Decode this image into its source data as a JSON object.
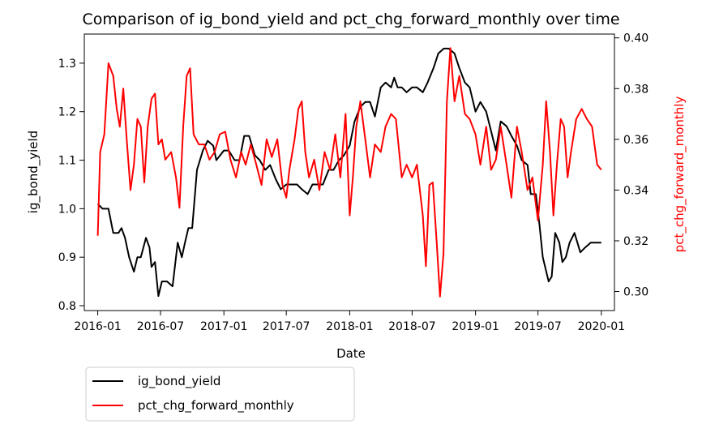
{
  "chart_data": {
    "type": "line",
    "title": "Comparison of ig_bond_yield and pct_chg_forward_monthly over time",
    "xlabel": "Date",
    "ylabel_left": "ig_bond_yield",
    "ylabel_right": "pct_chg_forward_monthly",
    "x_range": [
      "2015-11-23",
      "2020-02-08"
    ],
    "x_ticks": [
      "2016-01",
      "2016-07",
      "2017-01",
      "2017-07",
      "2018-01",
      "2018-07",
      "2019-01",
      "2019-07",
      "2020-01"
    ],
    "ylim_left": [
      0.79,
      1.36
    ],
    "yticks_left": [
      "0.8",
      "0.9",
      "1.0",
      "1.1",
      "1.2",
      "1.3"
    ],
    "ylim_right": [
      0.2925,
      0.4015
    ],
    "yticks_right": [
      "0.30",
      "0.32",
      "0.34",
      "0.36",
      "0.38",
      "0.40"
    ],
    "grid": false,
    "legend_position": "below-left",
    "series": [
      {
        "name": "ig_bond_yield",
        "color": "#000000",
        "axis": "left",
        "points": [
          [
            "2016-01-01",
            1.01
          ],
          [
            "2016-01-15",
            1.0
          ],
          [
            "2016-02-01",
            1.0
          ],
          [
            "2016-02-15",
            0.95
          ],
          [
            "2016-03-01",
            0.95
          ],
          [
            "2016-03-10",
            0.96
          ],
          [
            "2016-03-20",
            0.94
          ],
          [
            "2016-04-01",
            0.9
          ],
          [
            "2016-04-15",
            0.87
          ],
          [
            "2016-04-25",
            0.9
          ],
          [
            "2016-05-05",
            0.9
          ],
          [
            "2016-05-20",
            0.94
          ],
          [
            "2016-05-30",
            0.92
          ],
          [
            "2016-06-05",
            0.88
          ],
          [
            "2016-06-15",
            0.89
          ],
          [
            "2016-06-25",
            0.82
          ],
          [
            "2016-07-05",
            0.85
          ],
          [
            "2016-07-20",
            0.85
          ],
          [
            "2016-08-05",
            0.84
          ],
          [
            "2016-08-20",
            0.93
          ],
          [
            "2016-09-01",
            0.9
          ],
          [
            "2016-09-10",
            0.93
          ],
          [
            "2016-09-20",
            0.96
          ],
          [
            "2016-10-01",
            0.96
          ],
          [
            "2016-10-15",
            1.08
          ],
          [
            "2016-11-01",
            1.12
          ],
          [
            "2016-11-15",
            1.14
          ],
          [
            "2016-12-01",
            1.13
          ],
          [
            "2016-12-10",
            1.1
          ],
          [
            "2017-01-01",
            1.12
          ],
          [
            "2017-01-15",
            1.12
          ],
          [
            "2017-02-01",
            1.1
          ],
          [
            "2017-02-15",
            1.1
          ],
          [
            "2017-03-01",
            1.15
          ],
          [
            "2017-03-15",
            1.15
          ],
          [
            "2017-04-01",
            1.11
          ],
          [
            "2017-04-15",
            1.1
          ],
          [
            "2017-05-01",
            1.08
          ],
          [
            "2017-05-15",
            1.09
          ],
          [
            "2017-06-01",
            1.06
          ],
          [
            "2017-06-15",
            1.04
          ],
          [
            "2017-07-01",
            1.05
          ],
          [
            "2017-07-15",
            1.05
          ],
          [
            "2017-08-01",
            1.05
          ],
          [
            "2017-08-15",
            1.04
          ],
          [
            "2017-09-01",
            1.03
          ],
          [
            "2017-09-15",
            1.05
          ],
          [
            "2017-10-01",
            1.05
          ],
          [
            "2017-10-15",
            1.05
          ],
          [
            "2017-11-01",
            1.08
          ],
          [
            "2017-11-15",
            1.08
          ],
          [
            "2017-12-01",
            1.1
          ],
          [
            "2017-12-15",
            1.11
          ],
          [
            "2018-01-01",
            1.13
          ],
          [
            "2018-01-15",
            1.18
          ],
          [
            "2018-02-01",
            1.21
          ],
          [
            "2018-02-15",
            1.22
          ],
          [
            "2018-03-01",
            1.22
          ],
          [
            "2018-03-15",
            1.19
          ],
          [
            "2018-04-01",
            1.25
          ],
          [
            "2018-04-15",
            1.26
          ],
          [
            "2018-05-01",
            1.25
          ],
          [
            "2018-05-10",
            1.27
          ],
          [
            "2018-05-20",
            1.25
          ],
          [
            "2018-06-01",
            1.25
          ],
          [
            "2018-06-15",
            1.24
          ],
          [
            "2018-07-01",
            1.25
          ],
          [
            "2018-07-15",
            1.25
          ],
          [
            "2018-08-01",
            1.24
          ],
          [
            "2018-08-15",
            1.26
          ],
          [
            "2018-09-01",
            1.29
          ],
          [
            "2018-09-15",
            1.32
          ],
          [
            "2018-10-01",
            1.33
          ],
          [
            "2018-10-15",
            1.33
          ],
          [
            "2018-11-01",
            1.32
          ],
          [
            "2018-11-15",
            1.29
          ],
          [
            "2018-12-01",
            1.26
          ],
          [
            "2018-12-15",
            1.25
          ],
          [
            "2019-01-01",
            1.2
          ],
          [
            "2019-01-15",
            1.22
          ],
          [
            "2019-02-01",
            1.2
          ],
          [
            "2019-02-15",
            1.16
          ],
          [
            "2019-03-01",
            1.12
          ],
          [
            "2019-03-15",
            1.18
          ],
          [
            "2019-04-01",
            1.17
          ],
          [
            "2019-04-15",
            1.15
          ],
          [
            "2019-05-01",
            1.13
          ],
          [
            "2019-05-15",
            1.1
          ],
          [
            "2019-06-01",
            1.09
          ],
          [
            "2019-06-10",
            1.03
          ],
          [
            "2019-06-25",
            1.03
          ],
          [
            "2019-07-05",
            0.97
          ],
          [
            "2019-07-15",
            0.9
          ],
          [
            "2019-08-01",
            0.85
          ],
          [
            "2019-08-10",
            0.86
          ],
          [
            "2019-08-20",
            0.95
          ],
          [
            "2019-09-01",
            0.93
          ],
          [
            "2019-09-10",
            0.89
          ],
          [
            "2019-09-20",
            0.9
          ],
          [
            "2019-10-01",
            0.93
          ],
          [
            "2019-10-15",
            0.95
          ],
          [
            "2019-11-01",
            0.91
          ],
          [
            "2019-11-15",
            0.92
          ],
          [
            "2019-12-01",
            0.93
          ],
          [
            "2019-12-15",
            0.93
          ],
          [
            "2020-01-01",
            0.93
          ]
        ]
      },
      {
        "name": "pct_chg_forward_monthly",
        "color": "#ff0000",
        "axis": "right",
        "points": [
          [
            "2016-01-01",
            0.322
          ],
          [
            "2016-01-08",
            0.355
          ],
          [
            "2016-01-20",
            0.362
          ],
          [
            "2016-02-01",
            0.39
          ],
          [
            "2016-02-15",
            0.385
          ],
          [
            "2016-02-25",
            0.372
          ],
          [
            "2016-03-05",
            0.365
          ],
          [
            "2016-03-15",
            0.38
          ],
          [
            "2016-03-25",
            0.36
          ],
          [
            "2016-04-05",
            0.34
          ],
          [
            "2016-04-15",
            0.35
          ],
          [
            "2016-04-25",
            0.368
          ],
          [
            "2016-05-05",
            0.365
          ],
          [
            "2016-05-15",
            0.343
          ],
          [
            "2016-05-25",
            0.365
          ],
          [
            "2016-06-05",
            0.376
          ],
          [
            "2016-06-15",
            0.378
          ],
          [
            "2016-06-25",
            0.358
          ],
          [
            "2016-07-05",
            0.36
          ],
          [
            "2016-07-15",
            0.352
          ],
          [
            "2016-08-01",
            0.355
          ],
          [
            "2016-08-15",
            0.345
          ],
          [
            "2016-08-25",
            0.333
          ],
          [
            "2016-09-05",
            0.365
          ],
          [
            "2016-09-15",
            0.385
          ],
          [
            "2016-09-25",
            0.388
          ],
          [
            "2016-10-05",
            0.362
          ],
          [
            "2016-10-20",
            0.358
          ],
          [
            "2016-11-05",
            0.358
          ],
          [
            "2016-11-20",
            0.352
          ],
          [
            "2016-12-05",
            0.355
          ],
          [
            "2016-12-20",
            0.362
          ],
          [
            "2017-01-05",
            0.363
          ],
          [
            "2017-01-20",
            0.352
          ],
          [
            "2017-02-05",
            0.345
          ],
          [
            "2017-02-20",
            0.355
          ],
          [
            "2017-03-05",
            0.35
          ],
          [
            "2017-03-20",
            0.358
          ],
          [
            "2017-04-05",
            0.35
          ],
          [
            "2017-04-20",
            0.342
          ],
          [
            "2017-05-05",
            0.36
          ],
          [
            "2017-05-20",
            0.353
          ],
          [
            "2017-06-05",
            0.36
          ],
          [
            "2017-06-20",
            0.342
          ],
          [
            "2017-07-01",
            0.337
          ],
          [
            "2017-07-10",
            0.348
          ],
          [
            "2017-07-25",
            0.36
          ],
          [
            "2017-08-05",
            0.372
          ],
          [
            "2017-08-15",
            0.375
          ],
          [
            "2017-08-25",
            0.355
          ],
          [
            "2017-09-05",
            0.345
          ],
          [
            "2017-09-20",
            0.352
          ],
          [
            "2017-10-05",
            0.34
          ],
          [
            "2017-10-20",
            0.355
          ],
          [
            "2017-11-05",
            0.348
          ],
          [
            "2017-11-20",
            0.362
          ],
          [
            "2017-12-05",
            0.345
          ],
          [
            "2017-12-20",
            0.37
          ],
          [
            "2018-01-01",
            0.33
          ],
          [
            "2018-01-10",
            0.345
          ],
          [
            "2018-01-20",
            0.365
          ],
          [
            "2018-02-01",
            0.375
          ],
          [
            "2018-02-15",
            0.36
          ],
          [
            "2018-03-01",
            0.345
          ],
          [
            "2018-03-15",
            0.358
          ],
          [
            "2018-04-01",
            0.355
          ],
          [
            "2018-04-15",
            0.365
          ],
          [
            "2018-05-01",
            0.37
          ],
          [
            "2018-05-15",
            0.368
          ],
          [
            "2018-06-01",
            0.345
          ],
          [
            "2018-06-15",
            0.35
          ],
          [
            "2018-07-01",
            0.345
          ],
          [
            "2018-07-15",
            0.35
          ],
          [
            "2018-08-01",
            0.33
          ],
          [
            "2018-08-10",
            0.31
          ],
          [
            "2018-08-20",
            0.342
          ],
          [
            "2018-08-30",
            0.343
          ],
          [
            "2018-09-10",
            0.32
          ],
          [
            "2018-09-20",
            0.298
          ],
          [
            "2018-09-30",
            0.315
          ],
          [
            "2018-10-10",
            0.375
          ],
          [
            "2018-10-20",
            0.396
          ],
          [
            "2018-11-01",
            0.375
          ],
          [
            "2018-11-15",
            0.385
          ],
          [
            "2018-12-01",
            0.37
          ],
          [
            "2018-12-15",
            0.368
          ],
          [
            "2019-01-01",
            0.362
          ],
          [
            "2019-01-15",
            0.35
          ],
          [
            "2019-02-01",
            0.365
          ],
          [
            "2019-02-15",
            0.348
          ],
          [
            "2019-03-01",
            0.352
          ],
          [
            "2019-03-15",
            0.365
          ],
          [
            "2019-04-01",
            0.35
          ],
          [
            "2019-04-15",
            0.337
          ],
          [
            "2019-05-01",
            0.365
          ],
          [
            "2019-05-15",
            0.355
          ],
          [
            "2019-06-01",
            0.34
          ],
          [
            "2019-06-15",
            0.345
          ],
          [
            "2019-07-01",
            0.328
          ],
          [
            "2019-07-15",
            0.35
          ],
          [
            "2019-07-25",
            0.375
          ],
          [
            "2019-08-05",
            0.355
          ],
          [
            "2019-08-15",
            0.33
          ],
          [
            "2019-08-25",
            0.35
          ],
          [
            "2019-09-05",
            0.368
          ],
          [
            "2019-09-15",
            0.365
          ],
          [
            "2019-09-25",
            0.345
          ],
          [
            "2019-10-05",
            0.355
          ],
          [
            "2019-10-20",
            0.368
          ],
          [
            "2019-11-05",
            0.372
          ],
          [
            "2019-11-20",
            0.368
          ],
          [
            "2019-12-05",
            0.365
          ],
          [
            "2019-12-20",
            0.35
          ],
          [
            "2020-01-01",
            0.348
          ]
        ]
      }
    ]
  }
}
